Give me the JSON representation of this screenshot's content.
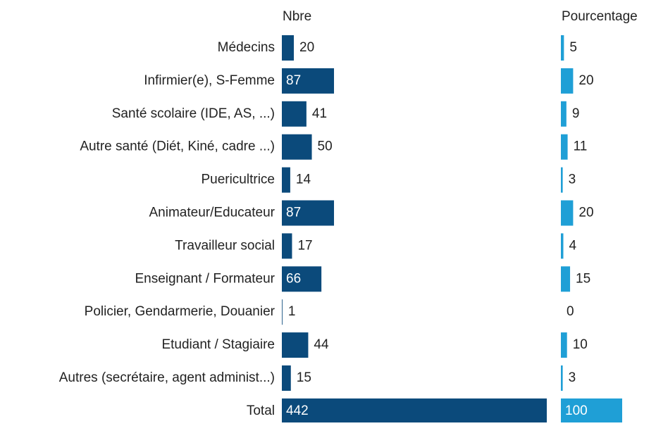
{
  "chart_data": [
    {
      "type": "bar",
      "orientation": "horizontal",
      "title": "Nbre",
      "color": "#0b4a7b",
      "categories": [
        "Médecins",
        "Infirmier(e), S-Femme",
        "Santé scolaire (IDE, AS, ...)",
        "Autre santé (Diét, Kiné, cadre ...)",
        "Puericultrice",
        "Animateur/Educateur",
        "Travailleur social",
        "Enseignant / Formateur",
        "Policier, Gendarmerie, Douanier",
        "Etudiant / Stagiaire",
        "Autres (secrétaire, agent administ...)",
        "Total"
      ],
      "values": [
        20,
        87,
        41,
        50,
        14,
        87,
        17,
        66,
        1,
        44,
        15,
        442
      ]
    },
    {
      "type": "bar",
      "orientation": "horizontal",
      "title": "Pourcentage",
      "color": "#1f9fd6",
      "values": [
        5,
        20,
        9,
        11,
        3,
        20,
        4,
        15,
        0,
        10,
        3,
        100
      ]
    }
  ]
}
